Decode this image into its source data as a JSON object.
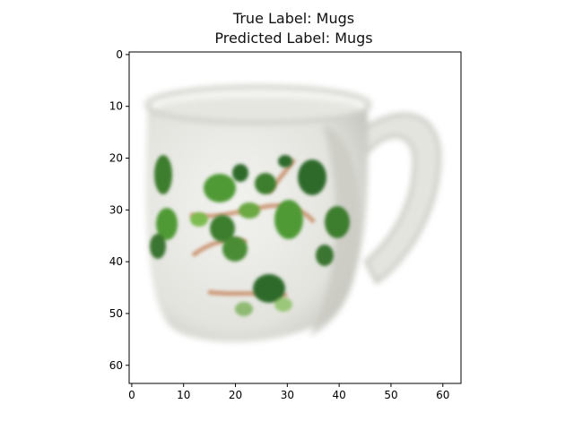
{
  "title": {
    "line1": "True Label: Mugs",
    "line2": "Predicted Label: Mugs"
  },
  "image": {
    "description_tag": "mug-photo",
    "width": 64,
    "height": 64
  },
  "axes": {
    "x_ticks": [
      0,
      10,
      20,
      30,
      40,
      50,
      60
    ],
    "y_ticks": [
      0,
      10,
      20,
      30,
      40,
      50,
      60
    ],
    "x_range": [
      -0.5,
      63.5
    ],
    "y_range": [
      -0.5,
      63.5
    ],
    "y_inverted": true
  },
  "colors": {
    "mug_body": "#e9e9e5",
    "mug_shadow": "#c8c8c2",
    "mug_rim": "#f5f5f2",
    "leaf_dark": "#2f6b2a",
    "leaf_mid": "#4f9a36",
    "leaf_light": "#7cbb4e",
    "vine": "#c98f6a",
    "background": "#ffffff",
    "axis": "#000000"
  }
}
